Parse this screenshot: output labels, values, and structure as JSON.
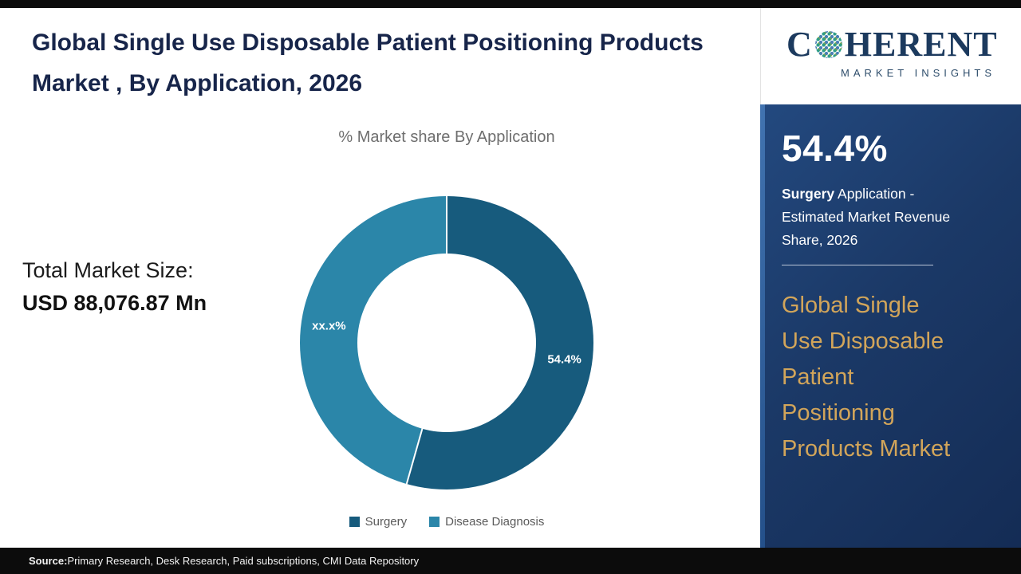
{
  "title": "Global Single Use Disposable Patient Positioning Products Market , By Application, 2026",
  "chart_data": {
    "type": "pie",
    "donut": true,
    "title": "% Market share By Application",
    "categories": [
      "Surgery",
      "Disease Diagnosis"
    ],
    "values": [
      54.4,
      45.6
    ],
    "slice_labels": [
      "54.4%",
      "xx.x%"
    ],
    "colors": [
      "#175b7d",
      "#2b86a9"
    ],
    "legend_position": "bottom"
  },
  "market_size": {
    "label": "Total Market Size:",
    "value": "USD 88,076.87 Mn"
  },
  "sidebar": {
    "logo": {
      "part1": "C",
      "part2": "HERENT",
      "subtitle": "MARKET INSIGHTS"
    },
    "stat_value": "54.4%",
    "stat_bold": "Surgery",
    "stat_rest": " Application - Estimated Market Revenue Share, 2026",
    "market_name": "Global Single Use Disposable Patient Positioning Products Market",
    "accent_color": "#d2a55a"
  },
  "footer": {
    "source_label": "Source:",
    "source_text": " Primary Research, Desk Research, Paid subscriptions, CMI Data Repository"
  }
}
